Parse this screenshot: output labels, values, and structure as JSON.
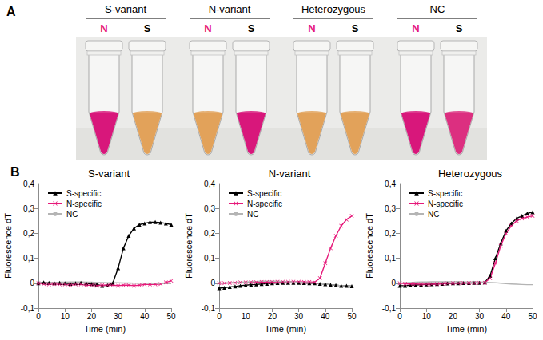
{
  "photo": {
    "letter": "A",
    "groups": [
      {
        "label": "S-variant",
        "tubes": [
          {
            "label": "N",
            "label_color": "#e6197a",
            "liquid_color": "#d8177b"
          },
          {
            "label": "S",
            "label_color": "#000000",
            "liquid_color": "#e2a25a"
          }
        ]
      },
      {
        "label": "N-variant",
        "tubes": [
          {
            "label": "N",
            "label_color": "#e6197a",
            "liquid_color": "#e2a25a"
          },
          {
            "label": "S",
            "label_color": "#000000",
            "liquid_color": "#d8177b"
          }
        ]
      },
      {
        "label": "Heterozygous",
        "tubes": [
          {
            "label": "N",
            "label_color": "#e6197a",
            "liquid_color": "#e2a25a"
          },
          {
            "label": "S",
            "label_color": "#000000",
            "liquid_color": "#e2a25a"
          }
        ]
      },
      {
        "label": "NC",
        "tubes": [
          {
            "label": "N",
            "label_color": "#e6197a",
            "liquid_color": "#d8177b"
          },
          {
            "label": "S",
            "label_color": "#000000",
            "liquid_color": "#dc2f80"
          }
        ]
      }
    ]
  },
  "charts_letter": "B",
  "chart_data": [
    {
      "type": "line",
      "title": "S-variant",
      "xlabel": "Time (min)",
      "ylabel": "Fluorescence dT",
      "xlim": [
        0,
        50
      ],
      "xticks": [
        0,
        10,
        20,
        30,
        40,
        50
      ],
      "ylim": [
        -0.1,
        0.4
      ],
      "yticks": [
        {
          "value": -0.1,
          "label": "-0,1"
        },
        0,
        {
          "value": 0.1,
          "label": "0,1"
        },
        {
          "value": 0.2,
          "label": "0,2"
        },
        {
          "value": 0.3,
          "label": "0,3"
        },
        {
          "value": 0.4,
          "label": "0,4"
        }
      ],
      "grid": false,
      "legend": "upper left",
      "x": [
        0,
        2,
        4,
        6,
        8,
        10,
        12,
        14,
        16,
        18,
        20,
        22,
        24,
        26,
        28,
        30,
        32,
        34,
        36,
        38,
        40,
        42,
        44,
        46,
        48,
        50
      ],
      "series": [
        {
          "name": "S-specific",
          "color": "#000000",
          "marker": "triangle",
          "line_style": "solid",
          "values": [
            0,
            0.003,
            0.002,
            0,
            0.002,
            0,
            -0.002,
            0,
            0.002,
            0,
            -0.003,
            -0.005,
            -0.01,
            -0.008,
            0.0,
            0.06,
            0.14,
            0.19,
            0.22,
            0.235,
            0.24,
            0.245,
            0.245,
            0.243,
            0.24,
            0.235
          ]
        },
        {
          "name": "N-specific",
          "color": "#e6197a",
          "marker": "x",
          "line_style": "solid",
          "values": [
            0,
            -0.003,
            -0.005,
            -0.003,
            -0.005,
            -0.005,
            -0.008,
            -0.005,
            -0.005,
            -0.008,
            -0.008,
            -0.01,
            -0.008,
            -0.008,
            -0.008,
            -0.01,
            -0.008,
            -0.008,
            -0.01,
            -0.008,
            -0.005,
            -0.005,
            -0.005,
            -0.003,
            0.003,
            0.01
          ]
        },
        {
          "name": "NC",
          "color": "#b4b4b4",
          "marker": "none",
          "line_style": "solid",
          "values": [
            0,
            0.002,
            0.003,
            0.003,
            0.004,
            0.004,
            0.005,
            0.005,
            0.005,
            0.004,
            0.004,
            0.003,
            0.003,
            0.002,
            0.002,
            0.002,
            0.001,
            0.001,
            0,
            0,
            0,
            -0.001,
            -0.001,
            -0.002,
            -0.002,
            -0.002
          ]
        }
      ]
    },
    {
      "type": "line",
      "title": "N-variant",
      "xlabel": "Time (min)",
      "ylabel": "Fluorescence dT",
      "xlim": [
        0,
        50
      ],
      "xticks": [
        0,
        10,
        20,
        30,
        40,
        50
      ],
      "ylim": [
        -0.1,
        0.4
      ],
      "yticks": [
        {
          "value": -0.1,
          "label": "-0,1"
        },
        0,
        {
          "value": 0.1,
          "label": "0,1"
        },
        {
          "value": 0.2,
          "label": "0,2"
        },
        {
          "value": 0.3,
          "label": "0,3"
        },
        {
          "value": 0.4,
          "label": "0,4"
        }
      ],
      "grid": false,
      "legend": "upper left",
      "x": [
        0,
        2,
        4,
        6,
        8,
        10,
        12,
        14,
        16,
        18,
        20,
        22,
        24,
        26,
        28,
        30,
        32,
        34,
        36,
        38,
        40,
        42,
        44,
        46,
        48,
        50
      ],
      "series": [
        {
          "name": "S-specific",
          "color": "#000000",
          "marker": "triangle",
          "line_style": "solid",
          "values": [
            -0.02,
            -0.018,
            -0.015,
            -0.013,
            -0.01,
            -0.008,
            -0.006,
            -0.005,
            -0.003,
            -0.002,
            0,
            0.001,
            0.002,
            0.002,
            0.002,
            0.002,
            0.001,
            0,
            0,
            -0.002,
            -0.004,
            -0.006,
            -0.008,
            -0.01,
            -0.01,
            -0.012
          ]
        },
        {
          "name": "N-specific",
          "color": "#e6197a",
          "marker": "x",
          "line_style": "solid",
          "values": [
            0,
            0,
            0.001,
            0.002,
            0.003,
            0.003,
            0.004,
            0.004,
            0.005,
            0.005,
            0.005,
            0.006,
            0.006,
            0.006,
            0.006,
            0.006,
            0.005,
            0.005,
            0.004,
            0.02,
            0.08,
            0.14,
            0.19,
            0.23,
            0.255,
            0.27
          ]
        },
        {
          "name": "NC",
          "color": "#b4b4b4",
          "marker": "none",
          "line_style": "solid",
          "values": [
            0,
            0.001,
            0.002,
            0.003,
            0.004,
            0.005,
            0.006,
            0.007,
            0.008,
            0.008,
            0.008,
            0.008,
            0.007,
            0.006,
            0.005,
            0.004,
            0.003,
            0.002,
            0,
            -0.002,
            -0.004,
            -0.006,
            -0.008,
            -0.01,
            -0.01,
            -0.012
          ]
        }
      ]
    },
    {
      "type": "line",
      "title": "Heterozygous",
      "xlabel": "Time (min)",
      "ylabel": "Fluorescence dT",
      "xlim": [
        0,
        50
      ],
      "xticks": [
        0,
        10,
        20,
        30,
        40,
        50
      ],
      "ylim": [
        -0.1,
        0.4
      ],
      "yticks": [
        {
          "value": -0.1,
          "label": "-0,1"
        },
        0,
        {
          "value": 0.1,
          "label": "0,1"
        },
        {
          "value": 0.2,
          "label": "0,2"
        },
        {
          "value": 0.3,
          "label": "0,3"
        },
        {
          "value": 0.4,
          "label": "0,4"
        }
      ],
      "grid": false,
      "legend": "upper left",
      "x": [
        0,
        2,
        4,
        6,
        8,
        10,
        12,
        14,
        16,
        18,
        20,
        22,
        24,
        26,
        28,
        30,
        32,
        34,
        36,
        38,
        40,
        42,
        44,
        46,
        48,
        50
      ],
      "series": [
        {
          "name": "S-specific",
          "color": "#000000",
          "marker": "triangle",
          "line_style": "solid",
          "values": [
            -0.01,
            -0.01,
            -0.008,
            -0.007,
            -0.006,
            -0.005,
            -0.004,
            -0.003,
            -0.002,
            -0.001,
            0,
            0,
            0.001,
            0.001,
            0.002,
            0.002,
            0.003,
            0.03,
            0.1,
            0.16,
            0.21,
            0.24,
            0.26,
            0.27,
            0.28,
            0.285
          ]
        },
        {
          "name": "N-specific",
          "color": "#e6197a",
          "marker": "x",
          "line_style": "solid",
          "values": [
            0,
            -0.002,
            -0.003,
            -0.003,
            -0.004,
            -0.004,
            -0.004,
            -0.003,
            -0.002,
            -0.001,
            0,
            0,
            0.001,
            0.001,
            0.001,
            0.002,
            0.002,
            0.02,
            0.08,
            0.15,
            0.2,
            0.23,
            0.25,
            0.26,
            0.265,
            0.27
          ]
        },
        {
          "name": "NC",
          "color": "#b4b4b4",
          "marker": "none",
          "line_style": "solid",
          "values": [
            0,
            0.002,
            0.003,
            0.004,
            0.005,
            0.005,
            0.006,
            0.006,
            0.006,
            0.006,
            0.006,
            0.006,
            0.005,
            0.005,
            0.005,
            0.005,
            0.004,
            0.003,
            0.002,
            0,
            -0.002,
            -0.003,
            -0.004,
            -0.005,
            -0.006,
            -0.006
          ]
        }
      ]
    }
  ]
}
